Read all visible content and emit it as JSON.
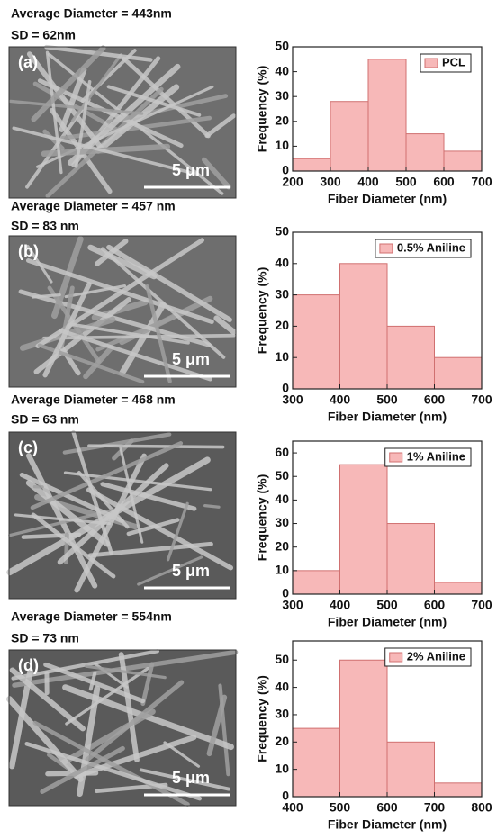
{
  "panels": [
    {
      "label": "(a)",
      "average": "Average Diameter = 443nm",
      "sd": "SD = 62nm",
      "scale": "5 μm"
    },
    {
      "label": "(b)",
      "average": "Average Diameter = 457 nm",
      "sd": "SD = 83 nm",
      "scale": "5 μm"
    },
    {
      "label": "(c)",
      "average": "Average Diameter = 468 nm",
      "sd": "SD = 63 nm",
      "scale": "5 μm"
    },
    {
      "label": "(d)",
      "average": "Average Diameter = 554nm",
      "sd": "SD = 73 nm",
      "scale": "5 μm"
    }
  ],
  "chart_data": [
    {
      "type": "histogram",
      "x_label": "Fiber Diameter (nm)",
      "y_label": "Frequency (%)",
      "bins": [
        200,
        300,
        400,
        500,
        600,
        700
      ],
      "series": [
        {
          "name": "PCL",
          "color": "#f7b8b8",
          "values": [
            5,
            28,
            45,
            15,
            8
          ]
        }
      ],
      "xlim": [
        200,
        700
      ],
      "xticks": [
        200,
        300,
        400,
        500,
        600,
        700
      ],
      "ylim": [
        0,
        50
      ],
      "yticks": [
        0,
        10,
        20,
        30,
        40,
        50
      ],
      "legend": "upper right"
    },
    {
      "type": "histogram",
      "x_label": "Fiber Diameter (nm)",
      "y_label": "Frequency (%)",
      "bins": [
        300,
        400,
        500,
        600,
        700
      ],
      "series": [
        {
          "name": "0.5% Aniline",
          "color": "#f7b8b8",
          "values": [
            30,
            40,
            20,
            10
          ]
        }
      ],
      "xlim": [
        300,
        700
      ],
      "xticks": [
        300,
        400,
        500,
        600,
        700
      ],
      "ylim": [
        0,
        50
      ],
      "yticks": [
        0,
        10,
        20,
        30,
        40,
        50
      ],
      "legend": "upper right"
    },
    {
      "type": "histogram",
      "x_label": "Fiber Diameter (nm)",
      "y_label": "Frequency (%)",
      "bins": [
        300,
        400,
        500,
        600,
        700
      ],
      "series": [
        {
          "name": "1% Aniline",
          "color": "#f7b8b8",
          "values": [
            10,
            55,
            30,
            5
          ]
        }
      ],
      "xlim": [
        300,
        700
      ],
      "xticks": [
        300,
        400,
        500,
        600,
        700
      ],
      "ylim": [
        0,
        65
      ],
      "yticks": [
        0,
        10,
        20,
        30,
        40,
        50,
        60
      ],
      "legend": "upper right"
    },
    {
      "type": "histogram",
      "x_label": "Fiber Diameter (nm)",
      "y_label": "Frequency (%)",
      "bins": [
        400,
        500,
        600,
        700,
        800
      ],
      "series": [
        {
          "name": "2% Aniline",
          "color": "#f7b8b8",
          "values": [
            25,
            50,
            20,
            5
          ]
        }
      ],
      "xlim": [
        400,
        800
      ],
      "xticks": [
        400,
        500,
        600,
        700,
        800
      ],
      "ylim": [
        0,
        57
      ],
      "yticks": [
        0,
        10,
        20,
        30,
        40,
        50
      ],
      "legend": "upper right"
    }
  ]
}
